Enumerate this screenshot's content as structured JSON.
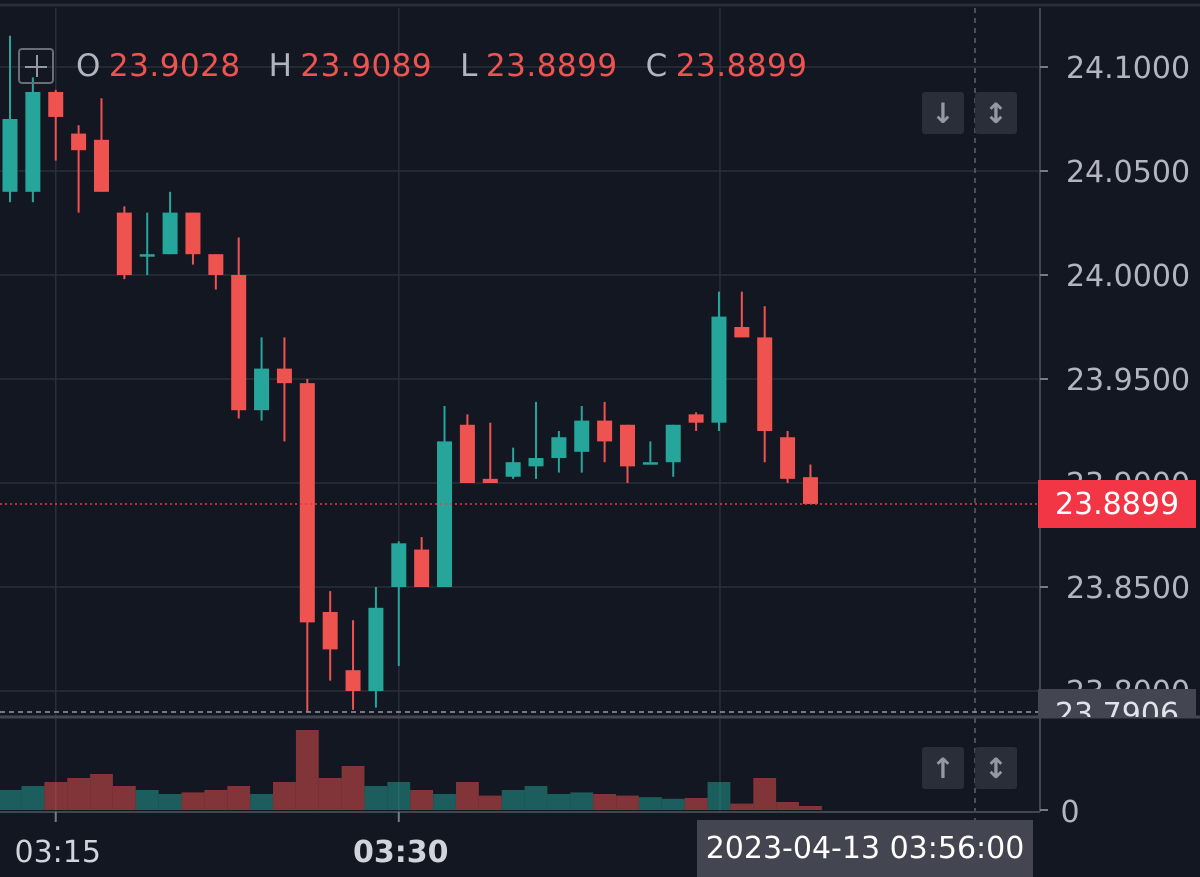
{
  "legend": {
    "o_label": "O",
    "o_value": "23.9028",
    "h_label": "H",
    "h_value": "23.9089",
    "l_label": "L",
    "l_value": "23.8899",
    "c_label": "C",
    "c_value": "23.8899"
  },
  "price_label": "23.8899",
  "min_label": "23.7906",
  "crosshair_time": "2023-04-13 03:56:00",
  "icons": {
    "crosshair_add": "plus-icon",
    "scale_down": "arrow-down-icon",
    "scale_fit": "arrows-vertical-icon",
    "volume_up": "arrow-up-icon",
    "volume_fit": "arrows-vertical-icon"
  },
  "colors": {
    "background": "#131722",
    "up": "#26a69a",
    "down": "#ef5350",
    "grid": "#2a2e39",
    "axis_text": "#b2b5be",
    "last_price": "#f23645"
  },
  "chart_data": {
    "type": "candlestick",
    "interval_minutes": 1,
    "y_ticks": [
      "24.1000",
      "24.0500",
      "24.0000",
      "23.9500",
      "23.9000",
      "23.8500",
      "23.8000"
    ],
    "y_range": [
      23.79,
      24.12
    ],
    "x_ticks": [
      "03:15",
      "03:30"
    ],
    "volume_tick": "0",
    "last_price": 23.8899,
    "min_price": 23.7906,
    "candles": [
      {
        "t": "03:13",
        "o": 24.04,
        "h": 24.115,
        "l": 24.035,
        "c": 24.075,
        "v": 0.25
      },
      {
        "t": "03:14",
        "o": 24.04,
        "h": 24.095,
        "l": 24.035,
        "c": 24.088,
        "v": 0.3
      },
      {
        "t": "03:15",
        "o": 24.088,
        "h": 24.089,
        "l": 24.055,
        "c": 24.076,
        "v": 0.35
      },
      {
        "t": "03:16",
        "o": 24.068,
        "h": 24.072,
        "l": 24.03,
        "c": 24.06,
        "v": 0.4
      },
      {
        "t": "03:17",
        "o": 24.065,
        "h": 24.085,
        "l": 24.04,
        "c": 24.04,
        "v": 0.45
      },
      {
        "t": "03:18",
        "o": 24.03,
        "h": 24.033,
        "l": 23.998,
        "c": 24.0,
        "v": 0.3
      },
      {
        "t": "03:19",
        "o": 24.01,
        "h": 24.03,
        "l": 24.0,
        "c": 24.01,
        "v": 0.25
      },
      {
        "t": "03:20",
        "o": 24.01,
        "h": 24.04,
        "l": 24.01,
        "c": 24.03,
        "v": 0.2
      },
      {
        "t": "03:21",
        "o": 24.03,
        "h": 24.03,
        "l": 24.005,
        "c": 24.01,
        "v": 0.22
      },
      {
        "t": "03:22",
        "o": 24.01,
        "h": 24.01,
        "l": 23.993,
        "c": 24.0,
        "v": 0.25
      },
      {
        "t": "03:23",
        "o": 24.0,
        "h": 24.018,
        "l": 23.931,
        "c": 23.935,
        "v": 0.3
      },
      {
        "t": "03:24",
        "o": 23.935,
        "h": 23.97,
        "l": 23.93,
        "c": 23.955,
        "v": 0.2
      },
      {
        "t": "03:25",
        "o": 23.955,
        "h": 23.97,
        "l": 23.92,
        "c": 23.948,
        "v": 0.35
      },
      {
        "t": "03:26",
        "o": 23.948,
        "h": 23.95,
        "l": 23.79,
        "c": 23.833,
        "v": 1.0
      },
      {
        "t": "03:27",
        "o": 23.838,
        "h": 23.848,
        "l": 23.805,
        "c": 23.82,
        "v": 0.4
      },
      {
        "t": "03:28",
        "o": 23.81,
        "h": 23.834,
        "l": 23.791,
        "c": 23.8,
        "v": 0.55
      },
      {
        "t": "03:29",
        "o": 23.8,
        "h": 23.85,
        "l": 23.792,
        "c": 23.84,
        "v": 0.3
      },
      {
        "t": "03:30",
        "o": 23.85,
        "h": 23.872,
        "l": 23.812,
        "c": 23.871,
        "v": 0.35
      },
      {
        "t": "03:31",
        "o": 23.868,
        "h": 23.874,
        "l": 23.85,
        "c": 23.85,
        "v": 0.25
      },
      {
        "t": "03:32",
        "o": 23.85,
        "h": 23.937,
        "l": 23.85,
        "c": 23.92,
        "v": 0.2
      },
      {
        "t": "03:33",
        "o": 23.928,
        "h": 23.933,
        "l": 23.9,
        "c": 23.9,
        "v": 0.35
      },
      {
        "t": "03:34",
        "o": 23.902,
        "h": 23.929,
        "l": 23.9,
        "c": 23.9,
        "v": 0.18
      },
      {
        "t": "03:35",
        "o": 23.903,
        "h": 23.917,
        "l": 23.902,
        "c": 23.91,
        "v": 0.25
      },
      {
        "t": "03:36",
        "o": 23.908,
        "h": 23.939,
        "l": 23.902,
        "c": 23.912,
        "v": 0.3
      },
      {
        "t": "03:37",
        "o": 23.912,
        "h": 23.925,
        "l": 23.905,
        "c": 23.922,
        "v": 0.2
      },
      {
        "t": "03:38",
        "o": 23.915,
        "h": 23.937,
        "l": 23.905,
        "c": 23.93,
        "v": 0.22
      },
      {
        "t": "03:39",
        "o": 23.93,
        "h": 23.939,
        "l": 23.91,
        "c": 23.92,
        "v": 0.2
      },
      {
        "t": "03:40",
        "o": 23.928,
        "h": 23.928,
        "l": 23.9,
        "c": 23.908,
        "v": 0.18
      },
      {
        "t": "03:41",
        "o": 23.91,
        "h": 23.92,
        "l": 23.91,
        "c": 23.91,
        "v": 0.16
      },
      {
        "t": "03:42",
        "o": 23.91,
        "h": 23.928,
        "l": 23.903,
        "c": 23.928,
        "v": 0.14
      },
      {
        "t": "03:43",
        "o": 23.933,
        "h": 23.934,
        "l": 23.925,
        "c": 23.929,
        "v": 0.15
      },
      {
        "t": "03:44",
        "o": 23.929,
        "h": 23.992,
        "l": 23.925,
        "c": 23.98,
        "v": 0.35
      },
      {
        "t": "03:45",
        "o": 23.975,
        "h": 23.992,
        "l": 23.97,
        "c": 23.97,
        "v": 0.08
      },
      {
        "t": "03:46",
        "o": 23.97,
        "h": 23.985,
        "l": 23.91,
        "c": 23.925,
        "v": 0.4
      },
      {
        "t": "03:47",
        "o": 23.922,
        "h": 23.925,
        "l": 23.9,
        "c": 23.902,
        "v": 0.1
      },
      {
        "t": "03:48",
        "o": 23.9028,
        "h": 23.9089,
        "l": 23.8899,
        "c": 23.8899,
        "v": 0.05
      }
    ]
  }
}
